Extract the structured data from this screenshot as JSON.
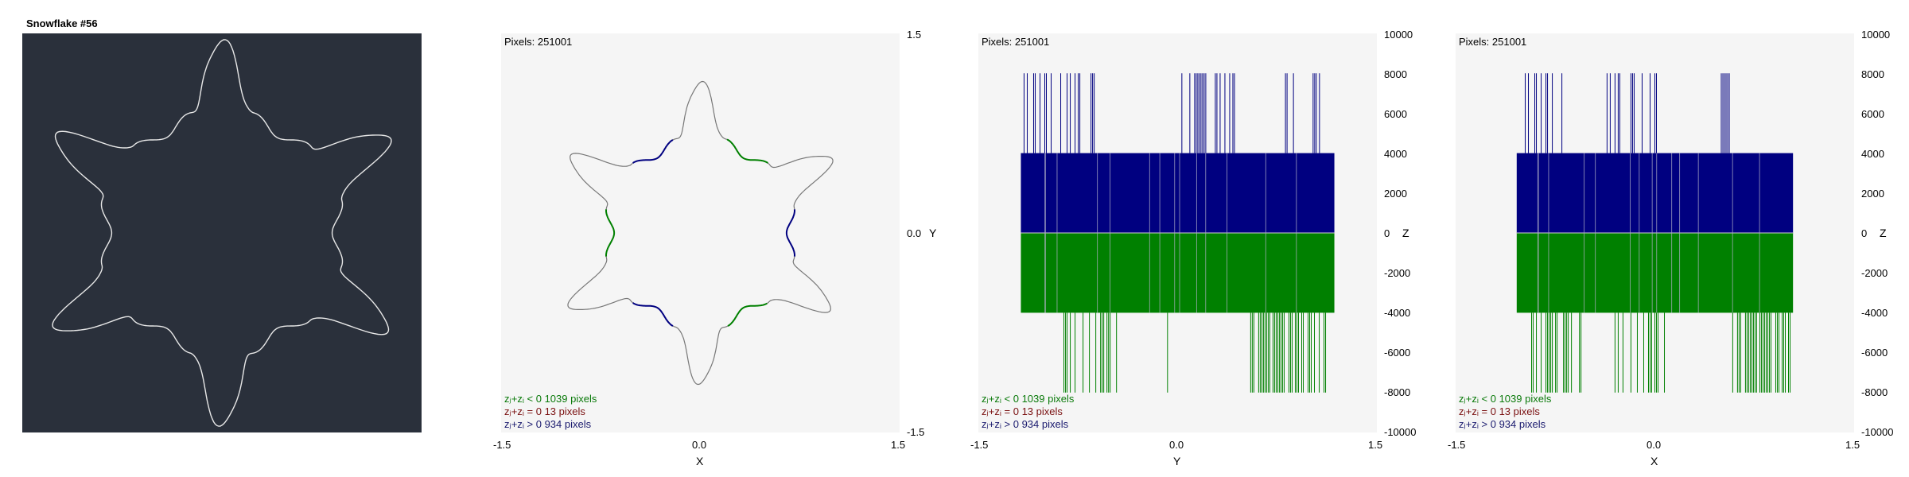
{
  "image_panel": {
    "title": "Snowflake #56"
  },
  "legend": {
    "neg": "zⱼ+zᵢ < 0  1039 pixels",
    "zero": "zⱼ+zᵢ = 0  13 pixels",
    "pos": "zⱼ+zᵢ > 0  934 pixels"
  },
  "colors": {
    "neg": "#008000",
    "pos": "#000080",
    "zero": "#7a1010",
    "image_bg": "#2a303b",
    "plot_bg": "#f5f5f5"
  },
  "chart_data": [
    {
      "type": "scatter",
      "pixels_label": "Pixels: 251001",
      "xlabel": "X",
      "ylabel": "Y",
      "xlim": [
        -1.5,
        1.5
      ],
      "ylim": [
        -1.5,
        1.5
      ],
      "xticks": [
        "-1.5",
        "0.0",
        "1.5"
      ],
      "yticks": [
        "1.5",
        "0.0",
        "-1.5"
      ],
      "description_series": [
        "zⱼ+zᵢ < 0",
        "zⱼ+zᵢ = 0",
        "zⱼ+zᵢ > 0"
      ],
      "shape": "six-armed snowflake outline spanning roughly -1.2 to 1.2"
    },
    {
      "type": "bar",
      "pixels_label": "Pixels: 251001",
      "xlabel": "Y",
      "ylabel": "Z",
      "xlim": [
        -1.5,
        1.5
      ],
      "ylim": [
        -10000,
        10000
      ],
      "xticks": [
        "-1.5",
        "0.0",
        "1.5"
      ],
      "yticks": [
        "10000",
        "8000",
        "6000",
        "4000",
        "2000",
        "0",
        "-2000",
        "-4000",
        "-6000",
        "-8000",
        "-10000"
      ],
      "bands": [
        {
          "series": "zⱼ+zᵢ > 0",
          "x_range": [
            -1.18,
            1.18
          ],
          "y_range": [
            0,
            4000
          ]
        },
        {
          "series": "zⱼ+zᵢ < 0",
          "x_range": [
            -1.18,
            1.18
          ],
          "y_range": [
            -4000,
            0
          ]
        }
      ],
      "spikes_pos_x_ranges": [
        [
          -1.18,
          -0.58
        ],
        [
          0.02,
          0.45
        ],
        [
          0.8,
          0.88
        ],
        [
          1.02,
          1.1
        ]
      ],
      "spikes_neg_x_ranges": [
        [
          -0.88,
          -0.42
        ],
        [
          -0.1,
          -0.05
        ],
        [
          0.55,
          1.12
        ]
      ],
      "spike_extent": 8000
    },
    {
      "type": "bar",
      "pixels_label": "Pixels: 251001",
      "xlabel": "X",
      "ylabel": "Z",
      "xlim": [
        -1.5,
        1.5
      ],
      "ylim": [
        -10000,
        10000
      ],
      "xticks": [
        "-1.5",
        "0.0",
        "1.5"
      ],
      "yticks": [
        "10000",
        "8000",
        "6000",
        "4000",
        "2000",
        "0",
        "-2000",
        "-4000",
        "-6000",
        "-8000",
        "-10000"
      ],
      "bands": [
        {
          "series": "zⱼ+zᵢ > 0",
          "x_range": [
            -1.04,
            1.04
          ],
          "y_range": [
            0,
            4000
          ]
        },
        {
          "series": "zⱼ+zᵢ < 0",
          "x_range": [
            -1.04,
            1.04
          ],
          "y_range": [
            -4000,
            0
          ]
        }
      ],
      "spikes_pos_x_ranges": [
        [
          -1.0,
          -0.66
        ],
        [
          -0.36,
          0.02
        ],
        [
          0.5,
          0.62
        ]
      ],
      "spikes_neg_x_ranges": [
        [
          -0.94,
          -0.55
        ],
        [
          -0.3,
          0.1
        ],
        [
          0.55,
          1.04
        ]
      ],
      "spike_extent": 8000
    }
  ]
}
